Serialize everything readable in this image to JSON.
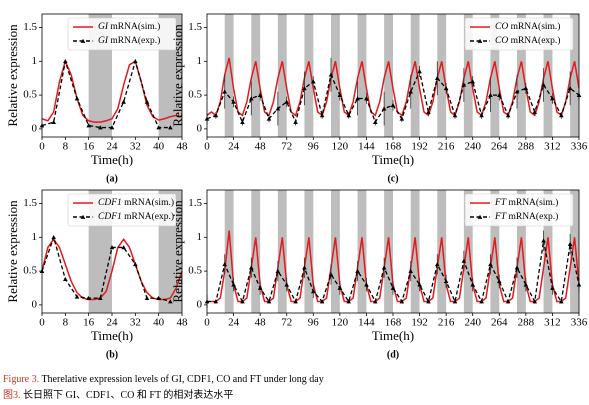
{
  "chart_data": [
    {
      "type": "line",
      "label": "(a)",
      "xlabel": "Time(h)",
      "ylabel": "Relative expression",
      "xlim": [
        0,
        48
      ],
      "xticks": [
        0,
        8,
        16,
        24,
        32,
        40,
        48
      ],
      "ylim": [
        -0.12,
        1.7
      ],
      "yticks": [
        0,
        0.5,
        1,
        1.5
      ],
      "shaded": [
        [
          16,
          24
        ],
        [
          40,
          48
        ]
      ],
      "shade_color": "#bdbdbd",
      "legend": "upper right",
      "series": [
        {
          "name": "GI mRNA(sim.)",
          "color": "#e41a1c",
          "x": [
            0,
            2,
            4,
            6,
            8,
            10,
            12,
            14,
            16,
            18,
            20,
            22,
            24,
            26,
            28,
            30,
            32,
            34,
            36,
            38,
            40,
            42,
            44,
            46,
            48
          ],
          "values": [
            0.15,
            0.12,
            0.25,
            0.7,
            1.0,
            0.8,
            0.45,
            0.2,
            0.12,
            0.1,
            0.1,
            0.12,
            0.15,
            0.3,
            0.65,
            0.95,
            1.0,
            0.7,
            0.35,
            0.18,
            0.13,
            0.15,
            0.18,
            0.2,
            0.18
          ]
        },
        {
          "name": "GI mRNA(exp.)",
          "color": "#000000",
          "x": [
            0,
            4,
            8,
            12,
            16,
            20,
            24,
            28,
            32,
            36,
            40,
            44
          ],
          "values": [
            0.05,
            0.1,
            1.0,
            0.45,
            0.05,
            0.02,
            0.02,
            0.4,
            1.0,
            0.4,
            0.02,
            0.02
          ]
        }
      ]
    },
    {
      "type": "line",
      "label": "(b)",
      "xlabel": "Time(h)",
      "ylabel": "Relative expression",
      "xlim": [
        0,
        48
      ],
      "xticks": [
        0,
        8,
        16,
        24,
        32,
        40,
        48
      ],
      "ylim": [
        -0.12,
        1.7
      ],
      "yticks": [
        0,
        0.5,
        1,
        1.5
      ],
      "shaded": [
        [
          16,
          24
        ],
        [
          40,
          48
        ]
      ],
      "shade_color": "#bdbdbd",
      "legend": "upper right",
      "series": [
        {
          "name": "CDF1 mRNA(sim.)",
          "color": "#e41a1c",
          "x": [
            0,
            2,
            4,
            6,
            8,
            10,
            12,
            14,
            16,
            18,
            20,
            22,
            24,
            26,
            28,
            30,
            32,
            34,
            36,
            38,
            40,
            42,
            44,
            46,
            48
          ],
          "values": [
            0.5,
            0.85,
            0.97,
            0.85,
            0.6,
            0.35,
            0.18,
            0.1,
            0.08,
            0.08,
            0.1,
            0.2,
            0.5,
            0.85,
            0.97,
            0.85,
            0.6,
            0.35,
            0.18,
            0.1,
            0.08,
            0.08,
            0.1,
            0.25,
            0.5
          ]
        },
        {
          "name": "CDF1 mRNA(exp.)",
          "color": "#000000",
          "x": [
            0,
            4,
            8,
            12,
            16,
            20,
            24,
            28,
            32,
            36,
            40,
            44
          ],
          "values": [
            0.5,
            1.0,
            0.38,
            0.12,
            0.1,
            0.1,
            0.85,
            0.85,
            0.6,
            0.1,
            0.1,
            0.05
          ]
        }
      ]
    },
    {
      "type": "line",
      "label": "(c)",
      "xlabel": "Time(h)",
      "ylabel": "Relative expression",
      "xlim": [
        0,
        336
      ],
      "xticks": [
        0,
        24,
        48,
        72,
        96,
        120,
        144,
        168,
        192,
        216,
        240,
        264,
        288,
        312,
        336
      ],
      "ylim": [
        -0.12,
        1.7
      ],
      "yticks": [
        0,
        0.5,
        1,
        1.5
      ],
      "shaded": [
        [
          16,
          24
        ],
        [
          40,
          48
        ],
        [
          64,
          72
        ],
        [
          88,
          96
        ],
        [
          112,
          120
        ],
        [
          136,
          144
        ],
        [
          160,
          168
        ],
        [
          184,
          192
        ],
        [
          208,
          216
        ],
        [
          232,
          240
        ],
        [
          256,
          264
        ],
        [
          280,
          288
        ],
        [
          304,
          312
        ],
        [
          328,
          336
        ]
      ],
      "shade_color": "#bdbdbd",
      "legend": "upper right",
      "series": [
        {
          "name": "CO mRNA(sim.)",
          "color": "#e41a1c",
          "x": [
            0,
            4,
            8,
            12,
            16,
            20,
            24,
            28,
            32,
            36,
            40,
            44,
            48,
            52,
            56,
            60,
            64,
            68,
            72,
            76,
            80,
            84,
            88,
            92,
            96,
            100,
            104,
            108,
            112,
            116,
            120,
            124,
            128,
            132,
            136,
            140,
            144,
            148,
            152,
            156,
            160,
            164,
            168,
            172,
            176,
            180,
            184,
            188,
            192,
            196,
            200,
            204,
            208,
            212,
            216,
            220,
            224,
            228,
            232,
            236,
            240,
            244,
            248,
            252,
            256,
            260,
            264,
            268,
            272,
            276,
            280,
            284,
            288,
            292,
            296,
            300,
            304,
            308,
            312,
            316,
            320,
            324,
            328,
            332,
            336
          ],
          "values": [
            0.2,
            0.25,
            0.2,
            0.4,
            0.8,
            1.05,
            0.6,
            0.25,
            0.2,
            0.4,
            0.75,
            1.0,
            0.6,
            0.25,
            0.2,
            0.4,
            0.75,
            1.0,
            0.6,
            0.25,
            0.2,
            0.4,
            0.75,
            1.0,
            0.6,
            0.25,
            0.2,
            0.4,
            0.75,
            1.0,
            0.6,
            0.25,
            0.2,
            0.4,
            0.75,
            1.0,
            0.6,
            0.25,
            0.2,
            0.4,
            0.75,
            1.0,
            0.6,
            0.25,
            0.2,
            0.4,
            0.75,
            1.0,
            0.6,
            0.25,
            0.2,
            0.4,
            0.75,
            1.0,
            0.6,
            0.25,
            0.2,
            0.4,
            0.75,
            1.0,
            0.6,
            0.25,
            0.2,
            0.4,
            0.75,
            1.0,
            0.6,
            0.25,
            0.2,
            0.4,
            0.75,
            1.0,
            0.6,
            0.25,
            0.2,
            0.4,
            0.75,
            1.0,
            0.6,
            0.25,
            0.2,
            0.4,
            0.75,
            1.0,
            0.6
          ]
        },
        {
          "name": "CO mRNA(exp.)",
          "color": "#000000",
          "x": [
            0,
            8,
            16,
            24,
            32,
            40,
            48,
            56,
            64,
            72,
            80,
            88,
            96,
            104,
            112,
            120,
            128,
            136,
            144,
            152,
            160,
            168,
            176,
            184,
            192,
            200,
            208,
            216,
            224,
            232,
            240,
            248,
            256,
            264,
            272,
            280,
            288,
            296,
            304,
            312,
            320,
            328,
            336
          ],
          "values": [
            0.15,
            0.2,
            0.55,
            0.4,
            0.1,
            0.45,
            0.5,
            0.15,
            0.3,
            0.4,
            0.1,
            0.6,
            0.7,
            0.2,
            0.8,
            0.5,
            0.2,
            0.45,
            0.45,
            0.1,
            0.3,
            0.35,
            0.15,
            0.55,
            0.85,
            0.25,
            0.75,
            0.6,
            0.2,
            0.65,
            0.7,
            0.2,
            0.5,
            0.5,
            0.2,
            0.55,
            0.6,
            0.25,
            0.65,
            0.45,
            0.2,
            0.6,
            0.5
          ],
          "errors": [
            0.08,
            0.05,
            0.25,
            0.08,
            0.05,
            0.25,
            0.08,
            0.05,
            0.25,
            0.08,
            0.05,
            0.25,
            0.08,
            0.05,
            0.25,
            0.08,
            0.05,
            0.25,
            0.08,
            0.05,
            0.25,
            0.08,
            0.05,
            0.25,
            0.08,
            0.05,
            0.25,
            0.08,
            0.05,
            0.25,
            0.08,
            0.05,
            0.25,
            0.08,
            0.05,
            0.25,
            0.08,
            0.05,
            0.25,
            0.08,
            0.05,
            0.25,
            0.08
          ]
        }
      ]
    },
    {
      "type": "line",
      "label": "(d)",
      "xlabel": "Time(h)",
      "ylabel": "Relative expression",
      "xlim": [
        0,
        336
      ],
      "xticks": [
        0,
        24,
        48,
        72,
        96,
        120,
        144,
        168,
        192,
        216,
        240,
        264,
        288,
        312,
        336
      ],
      "ylim": [
        -0.12,
        1.7
      ],
      "yticks": [
        0,
        0.5,
        1,
        1.5
      ],
      "shaded": [
        [
          16,
          24
        ],
        [
          40,
          48
        ],
        [
          64,
          72
        ],
        [
          88,
          96
        ],
        [
          112,
          120
        ],
        [
          136,
          144
        ],
        [
          160,
          168
        ],
        [
          184,
          192
        ],
        [
          208,
          216
        ],
        [
          232,
          240
        ],
        [
          256,
          264
        ],
        [
          280,
          288
        ],
        [
          304,
          312
        ],
        [
          328,
          336
        ]
      ],
      "shade_color": "#bdbdbd",
      "legend": "upper right",
      "series": [
        {
          "name": "FT mRNA(sim.)",
          "color": "#e41a1c",
          "x": [
            0,
            4,
            8,
            12,
            16,
            20,
            24,
            28,
            32,
            36,
            40,
            44,
            48,
            52,
            56,
            60,
            64,
            68,
            72,
            76,
            80,
            84,
            88,
            92,
            96,
            100,
            104,
            108,
            112,
            116,
            120,
            124,
            128,
            132,
            136,
            140,
            144,
            148,
            152,
            156,
            160,
            164,
            168,
            172,
            176,
            180,
            184,
            188,
            192,
            196,
            200,
            204,
            208,
            212,
            216,
            220,
            224,
            228,
            232,
            236,
            240,
            244,
            248,
            252,
            256,
            260,
            264,
            268,
            272,
            276,
            280,
            284,
            288,
            292,
            296,
            300,
            304,
            308,
            312,
            316,
            320,
            324,
            328,
            332,
            336
          ],
          "values": [
            0.05,
            0.05,
            0.05,
            0.1,
            0.5,
            1.1,
            0.3,
            0.05,
            0.05,
            0.1,
            0.55,
            1.0,
            0.3,
            0.05,
            0.05,
            0.1,
            0.55,
            1.0,
            0.3,
            0.05,
            0.05,
            0.1,
            0.55,
            1.0,
            0.3,
            0.05,
            0.05,
            0.1,
            0.55,
            1.0,
            0.3,
            0.05,
            0.05,
            0.1,
            0.55,
            1.0,
            0.3,
            0.05,
            0.05,
            0.1,
            0.55,
            1.0,
            0.3,
            0.05,
            0.05,
            0.1,
            0.55,
            1.0,
            0.3,
            0.05,
            0.05,
            0.1,
            0.55,
            1.0,
            0.3,
            0.05,
            0.05,
            0.1,
            0.55,
            1.0,
            0.3,
            0.05,
            0.05,
            0.1,
            0.55,
            1.0,
            0.3,
            0.05,
            0.05,
            0.1,
            0.55,
            1.0,
            0.3,
            0.05,
            0.05,
            0.1,
            0.55,
            1.0,
            0.3,
            0.05,
            0.05,
            0.1,
            0.55,
            1.0,
            0.3
          ]
        },
        {
          "name": "FT mRNA(exp.)",
          "color": "#000000",
          "x": [
            0,
            8,
            16,
            24,
            32,
            40,
            48,
            56,
            64,
            72,
            80,
            88,
            96,
            104,
            112,
            120,
            128,
            136,
            144,
            152,
            160,
            168,
            176,
            184,
            192,
            200,
            208,
            216,
            224,
            232,
            240,
            248,
            256,
            264,
            272,
            280,
            288,
            296,
            304,
            312,
            320,
            328,
            336
          ],
          "values": [
            0.05,
            0.05,
            0.6,
            0.3,
            0.05,
            0.55,
            0.25,
            0.05,
            0.5,
            0.3,
            0.05,
            0.55,
            0.2,
            0.05,
            0.45,
            0.25,
            0.05,
            0.5,
            0.3,
            0.05,
            0.55,
            0.25,
            0.05,
            0.5,
            0.3,
            0.05,
            0.6,
            0.35,
            0.05,
            0.65,
            0.3,
            0.05,
            0.6,
            0.35,
            0.05,
            0.55,
            0.3,
            0.05,
            0.95,
            0.25,
            0.05,
            0.9,
            0.3
          ],
          "errors": [
            0.1,
            0.03,
            0.15,
            0.1,
            0.03,
            0.15,
            0.1,
            0.03,
            0.15,
            0.1,
            0.03,
            0.15,
            0.1,
            0.03,
            0.15,
            0.1,
            0.03,
            0.15,
            0.1,
            0.03,
            0.15,
            0.1,
            0.03,
            0.15,
            0.1,
            0.03,
            0.15,
            0.1,
            0.03,
            0.15,
            0.1,
            0.03,
            0.15,
            0.1,
            0.03,
            0.15,
            0.1,
            0.03,
            0.15,
            0.1,
            0.03,
            0.15,
            0.1
          ]
        }
      ]
    }
  ],
  "caption": {
    "en_label": "Figure 3.",
    "en_text": "Therelative expression levels of GI, CDF1, CO and FT under long day",
    "zh_label": "图3.",
    "zh_text": "长日照下 GI、CDF1、CO 和 FT 的相对表达水平"
  }
}
